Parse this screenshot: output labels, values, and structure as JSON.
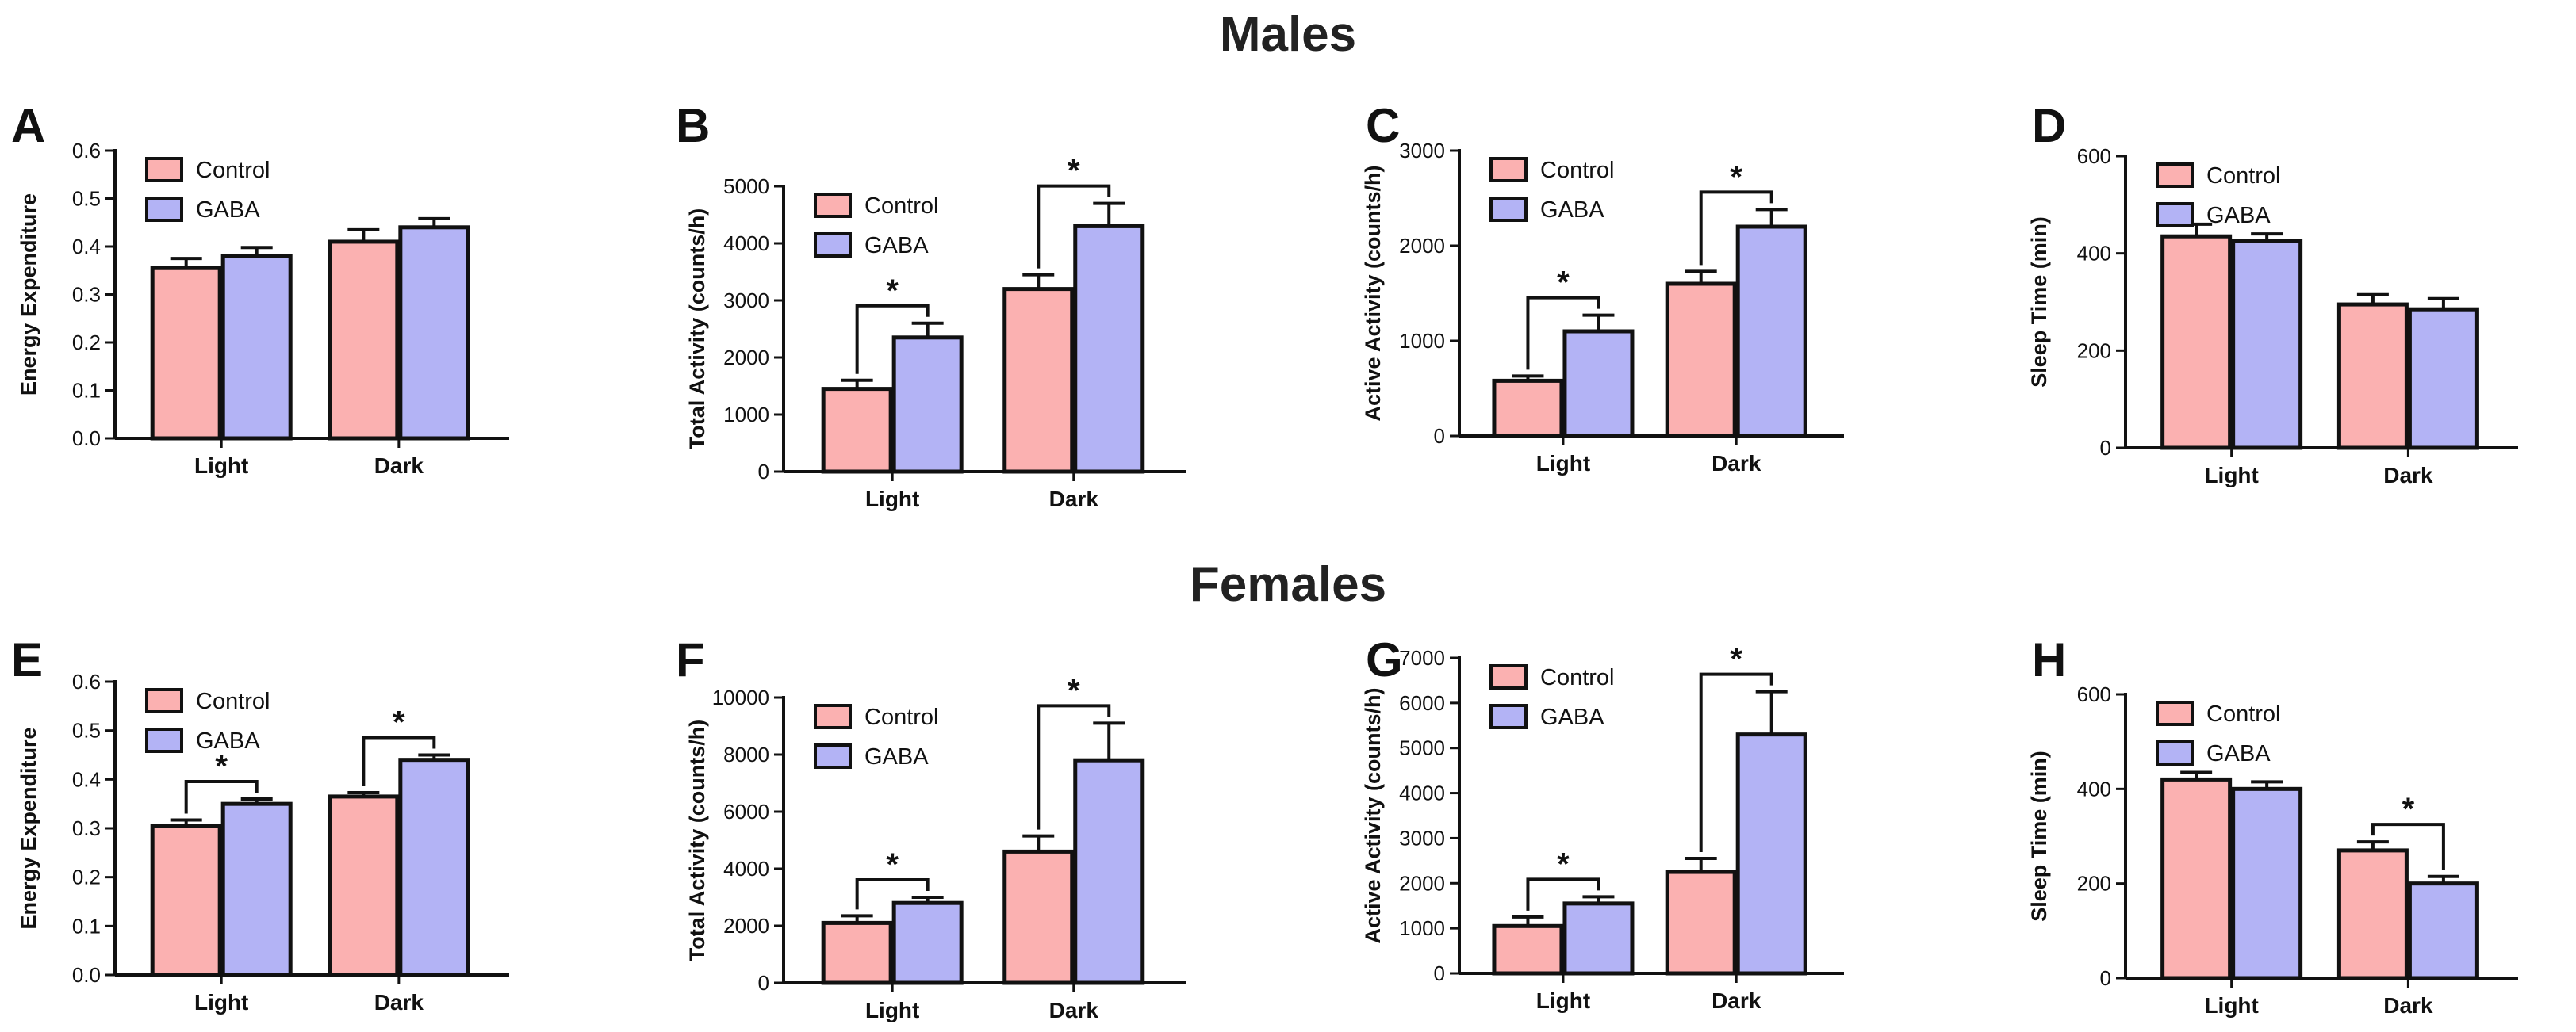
{
  "row_titles": [
    "Males",
    "Females"
  ],
  "legend_labels": [
    "Control",
    "GABA"
  ],
  "colors": {
    "Control": "#FBB1B1",
    "GABA": "#B3B3F5",
    "stroke": "#111111"
  },
  "chart_data": [
    {
      "panel": "A",
      "type": "bar",
      "ylabel": "Energy Expenditure",
      "categories": [
        "Light",
        "Dark"
      ],
      "ylim": [
        0,
        0.6
      ],
      "yticks": [
        "0.0",
        "0.1",
        "0.2",
        "0.3",
        "0.4",
        "0.5",
        "0.6"
      ],
      "series": [
        {
          "name": "Control",
          "values": [
            0.355,
            0.41
          ],
          "errors": [
            0.02,
            0.025
          ]
        },
        {
          "name": "GABA",
          "values": [
            0.38,
            0.44
          ],
          "errors": [
            0.018,
            0.018
          ]
        }
      ],
      "significance": [],
      "legend_position": "top-left"
    },
    {
      "panel": "B",
      "type": "bar",
      "ylabel": "Total  Activity (counts/h)",
      "categories": [
        "Light",
        "Dark"
      ],
      "ylim": [
        0,
        5000
      ],
      "yticks": [
        "0",
        "1000",
        "2000",
        "3000",
        "4000",
        "5000"
      ],
      "series": [
        {
          "name": "Control",
          "values": [
            1450,
            3200
          ],
          "errors": [
            150,
            250
          ]
        },
        {
          "name": "GABA",
          "values": [
            2350,
            4300
          ],
          "errors": [
            250,
            400
          ]
        }
      ],
      "significance": [
        {
          "category": "Light",
          "label": "*"
        },
        {
          "category": "Dark",
          "label": "*"
        }
      ],
      "legend_position": "top-left"
    },
    {
      "panel": "C",
      "type": "bar",
      "ylabel": "Active Activity (counts/h)",
      "categories": [
        "Light",
        "Dark"
      ],
      "ylim": [
        0,
        3000
      ],
      "yticks": [
        "0",
        "1000",
        "2000",
        "3000"
      ],
      "series": [
        {
          "name": "Control",
          "values": [
            580,
            1600
          ],
          "errors": [
            50,
            130
          ]
        },
        {
          "name": "GABA",
          "values": [
            1100,
            2200
          ],
          "errors": [
            170,
            180
          ]
        }
      ],
      "significance": [
        {
          "category": "Light",
          "label": "*"
        },
        {
          "category": "Dark",
          "label": "*"
        }
      ],
      "legend_position": "top-left"
    },
    {
      "panel": "D",
      "type": "bar",
      "ylabel": "Sleep Time (min)",
      "categories": [
        "Light",
        "Dark"
      ],
      "ylim": [
        0,
        600
      ],
      "yticks": [
        "0",
        "200",
        "400",
        "600"
      ],
      "series": [
        {
          "name": "Control",
          "values": [
            435,
            295
          ],
          "errors": [
            25,
            20
          ]
        },
        {
          "name": "GABA",
          "values": [
            425,
            285
          ],
          "errors": [
            15,
            22
          ]
        }
      ],
      "significance": [],
      "legend_position": "top-left"
    },
    {
      "panel": "E",
      "type": "bar",
      "ylabel": "Energy Expenditure",
      "categories": [
        "Light",
        "Dark"
      ],
      "ylim": [
        0,
        0.6
      ],
      "yticks": [
        "0.0",
        "0.1",
        "0.2",
        "0.3",
        "0.4",
        "0.5",
        "0.6"
      ],
      "series": [
        {
          "name": "Control",
          "values": [
            0.305,
            0.365
          ],
          "errors": [
            0.012,
            0.008
          ]
        },
        {
          "name": "GABA",
          "values": [
            0.35,
            0.44
          ],
          "errors": [
            0.01,
            0.01
          ]
        }
      ],
      "significance": [
        {
          "category": "Light",
          "label": "*"
        },
        {
          "category": "Dark",
          "label": "*"
        }
      ],
      "legend_position": "top-left"
    },
    {
      "panel": "F",
      "type": "bar",
      "ylabel": "Total  Activity (counts/h)",
      "categories": [
        "Light",
        "Dark"
      ],
      "ylim": [
        0,
        10000
      ],
      "yticks": [
        "0",
        "2000",
        "4000",
        "6000",
        "8000",
        "10000"
      ],
      "series": [
        {
          "name": "Control",
          "values": [
            2100,
            4600
          ],
          "errors": [
            250,
            550
          ]
        },
        {
          "name": "GABA",
          "values": [
            2800,
            7800
          ],
          "errors": [
            200,
            1300
          ]
        }
      ],
      "significance": [
        {
          "category": "Light",
          "label": "*"
        },
        {
          "category": "Dark",
          "label": "*"
        }
      ],
      "legend_position": "top-left"
    },
    {
      "panel": "G",
      "type": "bar",
      "ylabel": "Active Activity (counts/h)",
      "categories": [
        "Light",
        "Dark"
      ],
      "ylim": [
        0,
        7000
      ],
      "yticks": [
        "0",
        "1000",
        "2000",
        "3000",
        "4000",
        "5000",
        "6000",
        "7000"
      ],
      "series": [
        {
          "name": "Control",
          "values": [
            1050,
            2250
          ],
          "errors": [
            200,
            300
          ]
        },
        {
          "name": "GABA",
          "values": [
            1550,
            5300
          ],
          "errors": [
            150,
            950
          ]
        }
      ],
      "significance": [
        {
          "category": "Light",
          "label": "*"
        },
        {
          "category": "Dark",
          "label": "*"
        }
      ],
      "legend_position": "top-left"
    },
    {
      "panel": "H",
      "type": "bar",
      "ylabel": "Sleep Time (min)",
      "categories": [
        "Light",
        "Dark"
      ],
      "ylim": [
        0,
        600
      ],
      "yticks": [
        "0",
        "200",
        "400",
        "600"
      ],
      "series": [
        {
          "name": "Control",
          "values": [
            420,
            270
          ],
          "errors": [
            15,
            18
          ]
        },
        {
          "name": "GABA",
          "values": [
            400,
            200
          ],
          "errors": [
            15,
            15
          ]
        }
      ],
      "significance": [
        {
          "category": "Dark",
          "label": "*"
        }
      ],
      "legend_position": "top-left"
    }
  ]
}
